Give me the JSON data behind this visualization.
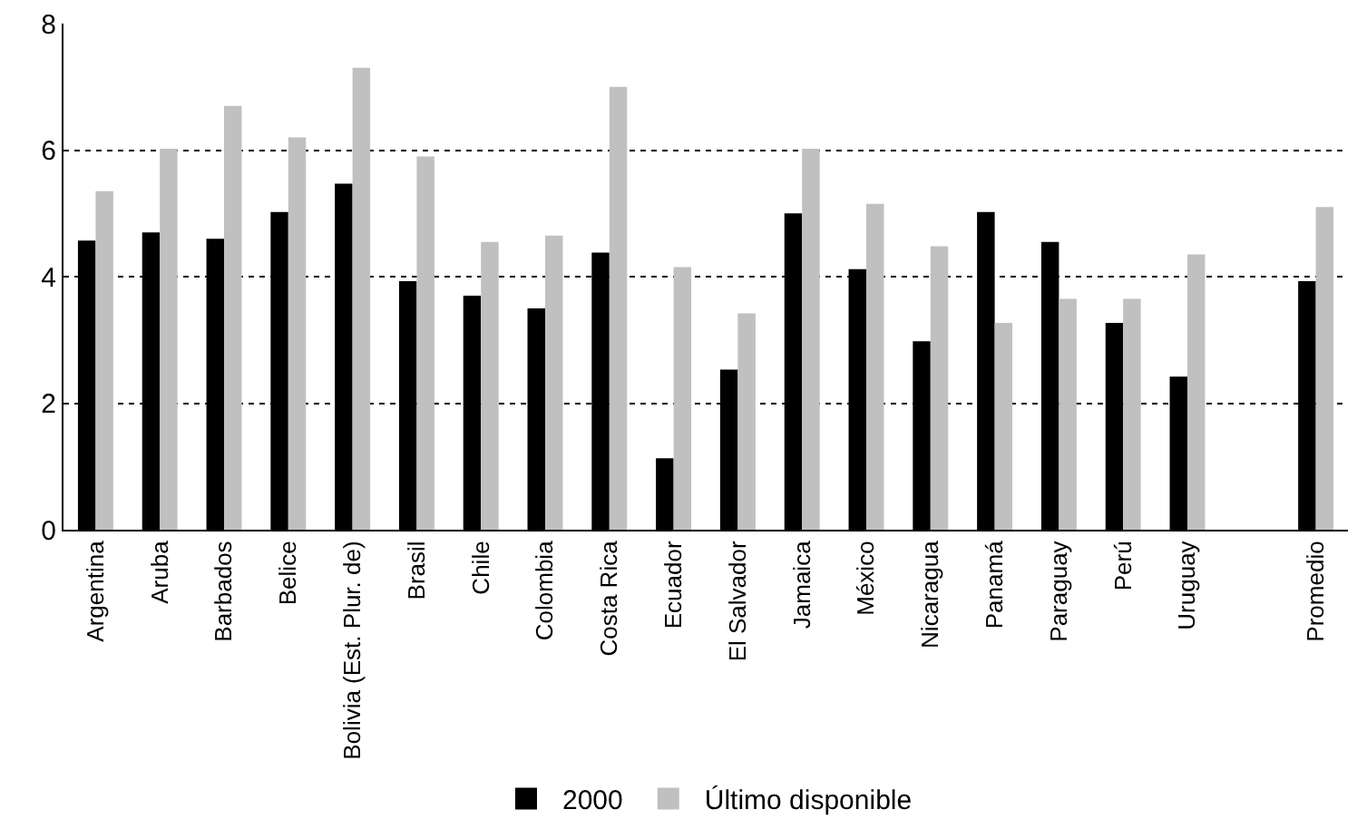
{
  "chart_data": {
    "type": "bar",
    "categories": [
      "Argentina",
      "Aruba",
      "Barbados",
      "Belice",
      "Bolivia (Est. Plur. de)",
      "Brasil",
      "Chile",
      "Colombia",
      "Costa Rica",
      "Ecuador",
      "El Salvador",
      "Jamaica",
      "México",
      "Nicaragua",
      "Panamá",
      "Paraguay",
      "Perú",
      "Uruguay",
      null,
      "Promedio"
    ],
    "series": [
      {
        "name": "2000",
        "color": "#000000",
        "values": [
          4.57,
          4.7,
          4.6,
          5.02,
          5.47,
          3.93,
          3.7,
          3.5,
          4.38,
          1.13,
          2.53,
          5.0,
          4.12,
          2.98,
          5.02,
          4.55,
          3.27,
          2.42,
          null,
          3.93
        ]
      },
      {
        "name": "Último disponible",
        "color": "#c0c0c0",
        "values": [
          5.35,
          6.02,
          6.7,
          6.2,
          7.3,
          5.9,
          4.55,
          4.65,
          7.0,
          4.15,
          3.42,
          6.02,
          5.15,
          4.48,
          3.27,
          3.65,
          3.65,
          4.35,
          null,
          5.1
        ]
      }
    ],
    "ylim": [
      0,
      8
    ],
    "yticks": [
      0,
      2,
      4,
      6,
      8
    ],
    "grid": "y",
    "legend": "bottom"
  }
}
